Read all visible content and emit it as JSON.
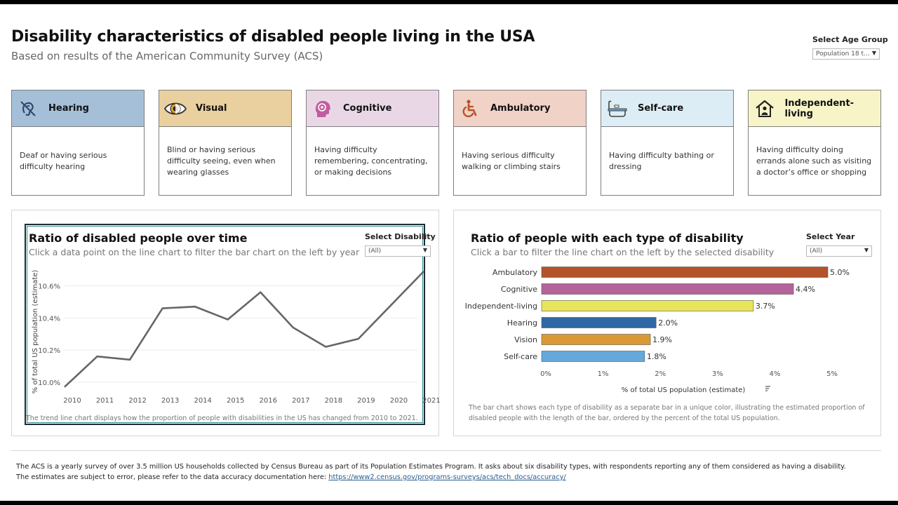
{
  "header": {
    "title": "Disability characteristics of disabled people living in the USA",
    "subtitle": "Based on results of the American Community Survey (ACS)",
    "age_group_label": "Select Age Group",
    "age_group_value": "Population 18 t..."
  },
  "cards": [
    {
      "name": "Hearing",
      "description": "Deaf or having serious difficulty hearing",
      "color": "#a6bfd9",
      "icon": "ear-slash-icon"
    },
    {
      "name": "Visual",
      "description": "Blind or having serious difficulty seeing, even when wearing glasses",
      "color": "#ead09e",
      "icon": "eye-icon"
    },
    {
      "name": "Cognitive",
      "description": "Having difficulty remembering, concentrating, or making decisions",
      "color": "#ead7e6",
      "icon": "brain-head-icon"
    },
    {
      "name": "Ambulatory",
      "description": "Having serious difficulty walking or climbing stairs",
      "color": "#f0d2c6",
      "icon": "wheelchair-icon"
    },
    {
      "name": "Self-care",
      "description": "Having difficulty bathing or dressing",
      "color": "#dcedf5",
      "icon": "bathtub-icon"
    },
    {
      "name": "Independent-living",
      "description": "Having difficulty doing errands alone such as visiting a doctor’s office or shopping",
      "color": "#f7f4c8",
      "icon": "home-person-icon"
    }
  ],
  "line_panel": {
    "title": "Ratio of disabled people over time",
    "subtitle": "Click a data point on the line chart to filter the bar chart on the left by year",
    "filter_label": "Select Disability",
    "filter_value": "(All)",
    "note": "The trend line chart displays how the proportion of people with disabilities in the US has changed from 2010 to 2021."
  },
  "bar_panel": {
    "title": "Ratio of people with each type of disability",
    "subtitle": "Click a bar to filter the line chart on the left by the selected disability",
    "filter_label": "Select Year",
    "filter_value": "(All)",
    "note_line1": "The bar chart shows each type of disability as a separate bar in a unique color, illustrating the estimated proportion of",
    "note_line2": "disabled people with the length of the bar, ordered by the percent of the total US population."
  },
  "chart_data": [
    {
      "type": "line",
      "x": [
        "2010",
        "2011",
        "2012",
        "2013",
        "2014",
        "2015",
        "2016",
        "2017",
        "2018",
        "2019",
        "2020",
        "2021"
      ],
      "y": [
        9.97,
        10.16,
        10.14,
        10.46,
        10.47,
        10.39,
        10.56,
        10.34,
        10.22,
        10.27,
        10.48,
        10.69
      ],
      "ylabel": "% of total US population (estimate)",
      "yticks": [
        "10.0%",
        "10.2%",
        "10.4%",
        "10.6%"
      ],
      "ytick_values": [
        10.0,
        10.2,
        10.4,
        10.6
      ],
      "line_color": "#666666"
    },
    {
      "type": "bar",
      "orientation": "horizontal",
      "categories": [
        "Ambulatory",
        "Cognitive",
        "Independent-living",
        "Hearing",
        "Vision",
        "Self-care"
      ],
      "values": [
        5.0,
        4.4,
        3.7,
        2.0,
        1.9,
        1.8
      ],
      "labels": [
        "5.0%",
        "4.4%",
        "3.7%",
        "2.0%",
        "1.9%",
        "1.8%"
      ],
      "colors": [
        "#b4532a",
        "#b5639b",
        "#e8e55c",
        "#2e67a4",
        "#d99a35",
        "#65a9dc"
      ],
      "xlabel": "% of total US population (estimate)",
      "xticks": [
        "0%",
        "1%",
        "2%",
        "3%",
        "4%",
        "5%"
      ],
      "xlim": [
        0,
        5
      ]
    }
  ],
  "footer": {
    "line1": "The ACS is a yearly survey of over 3.5 million US households collected by Census Bureau as part of its Population Estimates Program. It asks about six disability types, with respondents reporting any of them considered as having a disability.",
    "line2_prefix": "The estimates are subject to error, please refer to the data accuracy documentation here: ",
    "link": "https://www2.census.gov/programs-surveys/acs/tech_docs/accuracy/"
  }
}
